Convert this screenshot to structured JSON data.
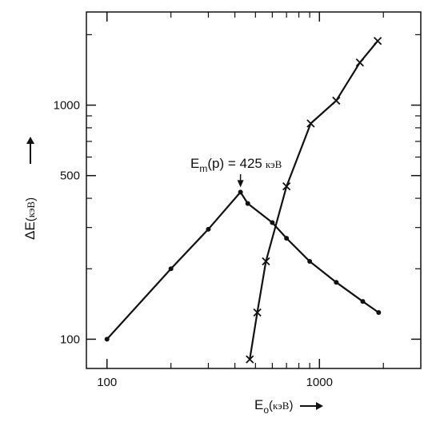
{
  "chart_data": {
    "type": "line",
    "x_scale": "log",
    "y_scale": "log",
    "xlim": [
      80,
      3000
    ],
    "ylim": [
      75,
      2500
    ],
    "x_ticks": [
      100,
      1000
    ],
    "x_tick_labels": [
      "100",
      "1000"
    ],
    "y_ticks": [
      100,
      500,
      1000
    ],
    "y_tick_labels": [
      "100",
      "500",
      "1000"
    ],
    "x_minor_ticks": [
      200,
      300,
      400,
      500,
      600,
      700,
      800,
      900,
      2000
    ],
    "y_minor_ticks": [
      200,
      300,
      400,
      600,
      700,
      800,
      900,
      2000
    ],
    "xlabel": {
      "symbol": "E",
      "sub": "o",
      "open": "(",
      "unit": "кэВ",
      "close": ")"
    },
    "ylabel": {
      "symbol": "ΔE",
      "open": "(",
      "unit": "кэВ",
      "close": ")"
    },
    "annotation": {
      "text": "E",
      "sub": "m",
      "rest": "(p) = 425",
      "unit": "кэВ",
      "x": 425,
      "y": 425
    },
    "series": [
      {
        "marker": "dot",
        "x": [
          100,
          200,
          300,
          425,
          460,
          600,
          700,
          900,
          1200,
          1600,
          1900
        ],
        "y": [
          100,
          200,
          295,
          425,
          380,
          315,
          270,
          215,
          175,
          145,
          130
        ]
      },
      {
        "marker": "x",
        "x": [
          470,
          510,
          560,
          700,
          910,
          1200,
          1550,
          1880
        ],
        "y": [
          82,
          130,
          215,
          450,
          835,
          1045,
          1520,
          1880
        ]
      }
    ]
  }
}
